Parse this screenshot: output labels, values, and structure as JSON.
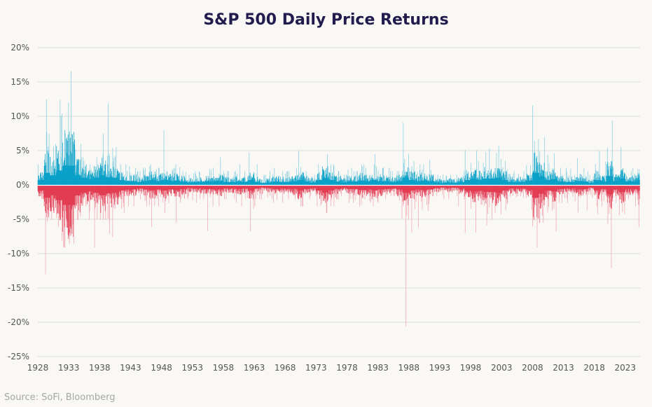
{
  "chart_data": {
    "type": "bar",
    "title": "S&P 500 Daily Price Returns",
    "source": "Source: SoFi, Bloomberg",
    "xlabel": "",
    "ylabel": "",
    "ylim": [
      -25,
      20
    ],
    "xlim": [
      1928,
      2025.4
    ],
    "yticks": [
      "20%",
      "15%",
      "10%",
      "5%",
      "0%",
      "-5%",
      "-10%",
      "-15%",
      "-20%",
      "-25%"
    ],
    "ytick_values": [
      20,
      15,
      10,
      5,
      0,
      -5,
      -10,
      -15,
      -20,
      -25
    ],
    "xticks": [
      "1928",
      "1933",
      "1938",
      "1943",
      "1948",
      "1953",
      "1958",
      "1963",
      "1968",
      "1973",
      "1978",
      "1983",
      "1988",
      "1993",
      "1998",
      "2003",
      "2008",
      "2013",
      "2018",
      "2023"
    ],
    "grid": true,
    "colors": {
      "positive": "#0aa1c8",
      "negative": "#e23c53",
      "positive_light": "#7fcbe0",
      "negative_light": "#f0a0ad",
      "grid": "#dcdcdc",
      "background": "#f9f8f4",
      "title": "#201d4e"
    },
    "yearly_summary_columns": [
      "year",
      "max_daily_return_pct",
      "min_daily_return_pct",
      "typical_abs_return_pct"
    ],
    "yearly_summary": [
      [
        1928,
        3,
        -2,
        1
      ],
      [
        1929,
        12.5,
        -12.9,
        2.5
      ],
      [
        1930,
        6,
        -5,
        2
      ],
      [
        1931,
        12.4,
        -8,
        3
      ],
      [
        1932,
        12,
        -9,
        4
      ],
      [
        1933,
        16.6,
        -8.5,
        4
      ],
      [
        1934,
        6,
        -5,
        2
      ],
      [
        1935,
        4,
        -3,
        1.5
      ],
      [
        1936,
        3,
        -5,
        1.2
      ],
      [
        1937,
        4,
        -9,
        1.5
      ],
      [
        1938,
        7.5,
        -5,
        2
      ],
      [
        1939,
        11.9,
        -7,
        1.6
      ],
      [
        1940,
        5.5,
        -7.5,
        1.5
      ],
      [
        1941,
        3,
        -4,
        1
      ],
      [
        1942,
        3,
        -3,
        0.8
      ],
      [
        1943,
        2.5,
        -3,
        0.8
      ],
      [
        1944,
        2,
        -2,
        0.6
      ],
      [
        1945,
        2.5,
        -3,
        0.8
      ],
      [
        1946,
        3,
        -6,
        1
      ],
      [
        1947,
        2.5,
        -3,
        0.8
      ],
      [
        1948,
        8,
        -4,
        1
      ],
      [
        1949,
        2.5,
        -2.5,
        0.8
      ],
      [
        1950,
        3,
        -5.4,
        0.9
      ],
      [
        1951,
        2,
        -2.5,
        0.7
      ],
      [
        1952,
        1.5,
        -2,
        0.5
      ],
      [
        1953,
        2,
        -2.5,
        0.6
      ],
      [
        1954,
        2,
        -2,
        0.6
      ],
      [
        1955,
        2.3,
        -6.6,
        0.7
      ],
      [
        1956,
        2.5,
        -3,
        0.7
      ],
      [
        1957,
        4,
        -3,
        0.8
      ],
      [
        1958,
        2,
        -2,
        0.6
      ],
      [
        1959,
        2,
        -2,
        0.6
      ],
      [
        1960,
        3,
        -3,
        0.7
      ],
      [
        1961,
        2,
        -2,
        0.6
      ],
      [
        1962,
        4.7,
        -6.7,
        1
      ],
      [
        1963,
        3,
        -3,
        0.6
      ],
      [
        1964,
        1.5,
        -2,
        0.4
      ],
      [
        1965,
        2,
        -2,
        0.5
      ],
      [
        1966,
        2.5,
        -2.5,
        0.7
      ],
      [
        1967,
        2,
        -2.5,
        0.6
      ],
      [
        1968,
        2,
        -2,
        0.6
      ],
      [
        1969,
        2.5,
        -2,
        0.7
      ],
      [
        1970,
        5,
        -3,
        1
      ],
      [
        1971,
        2,
        -2,
        0.7
      ],
      [
        1972,
        1.5,
        -1.5,
        0.5
      ],
      [
        1973,
        3,
        -3,
        1
      ],
      [
        1974,
        4.5,
        -4,
        1.4
      ],
      [
        1975,
        3,
        -3,
        1
      ],
      [
        1976,
        2,
        -2,
        0.7
      ],
      [
        1977,
        1.5,
        -1.5,
        0.5
      ],
      [
        1978,
        2.5,
        -2.5,
        0.7
      ],
      [
        1979,
        2,
        -2.5,
        0.7
      ],
      [
        1980,
        3,
        -3,
        0.9
      ],
      [
        1981,
        2.5,
        -2.5,
        0.8
      ],
      [
        1982,
        4.5,
        -3,
        1
      ],
      [
        1983,
        2.5,
        -2.5,
        0.8
      ],
      [
        1984,
        2.5,
        -2,
        0.7
      ],
      [
        1985,
        2,
        -1.5,
        0.6
      ],
      [
        1986,
        2,
        -4.8,
        0.8
      ],
      [
        1987,
        9.1,
        -20.5,
        1.5
      ],
      [
        1988,
        3.5,
        -6.8,
        1
      ],
      [
        1989,
        3,
        -6.1,
        0.8
      ],
      [
        1990,
        3,
        -3.5,
        0.9
      ],
      [
        1991,
        3.7,
        -3.7,
        0.8
      ],
      [
        1992,
        1.5,
        -1.5,
        0.5
      ],
      [
        1993,
        1.5,
        -2,
        0.4
      ],
      [
        1994,
        1.5,
        -2,
        0.5
      ],
      [
        1995,
        1.5,
        -1.5,
        0.4
      ],
      [
        1996,
        2,
        -3,
        0.6
      ],
      [
        1997,
        5.1,
        -6.9,
        1
      ],
      [
        1998,
        5,
        -6.8,
        1.2
      ],
      [
        1999,
        3.5,
        -2.8,
        1.1
      ],
      [
        2000,
        4.8,
        -5.8,
        1.3
      ],
      [
        2001,
        5.3,
        -4.9,
        1.3
      ],
      [
        2002,
        5.7,
        -4.2,
        1.5
      ],
      [
        2003,
        3.5,
        -3.5,
        1
      ],
      [
        2004,
        1.6,
        -1.6,
        0.6
      ],
      [
        2005,
        2,
        -1.7,
        0.6
      ],
      [
        2006,
        2,
        -1.8,
        0.6
      ],
      [
        2007,
        2.9,
        -3.5,
        0.9
      ],
      [
        2008,
        11.6,
        -9,
        2.5
      ],
      [
        2009,
        7,
        -5.4,
        1.7
      ],
      [
        2010,
        4.4,
        -3.9,
        1
      ],
      [
        2011,
        4.6,
        -6.7,
        1.2
      ],
      [
        2012,
        2.5,
        -2.5,
        0.7
      ],
      [
        2013,
        2.5,
        -2.5,
        0.6
      ],
      [
        2014,
        2.4,
        -2.3,
        0.6
      ],
      [
        2015,
        3.9,
        -3.9,
        0.8
      ],
      [
        2016,
        2.5,
        -3.6,
        0.7
      ],
      [
        2017,
        1.4,
        -1.8,
        0.4
      ],
      [
        2018,
        5,
        -4.1,
        1
      ],
      [
        2019,
        3.4,
        -3,
        0.7
      ],
      [
        2020,
        9.4,
        -12,
        1.8
      ],
      [
        2021,
        2.5,
        -2.5,
        0.8
      ],
      [
        2022,
        5.5,
        -4.3,
        1.3
      ],
      [
        2023,
        2,
        -2,
        0.7
      ],
      [
        2024,
        2.5,
        -3,
        0.7
      ],
      [
        2025,
        2.3,
        -6,
        1
      ]
    ]
  }
}
